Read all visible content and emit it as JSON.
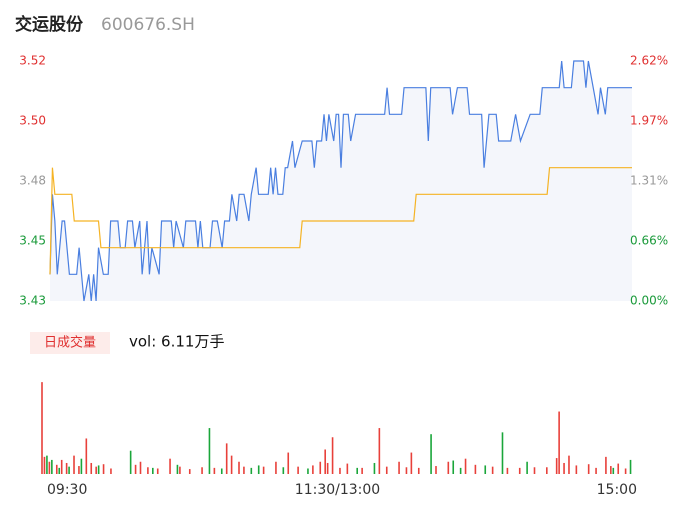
{
  "chart_data": [
    {
      "type": "line",
      "title": "交运股份",
      "subtitle": "600676.SH",
      "xlim": [
        0,
        240
      ],
      "ylim": [
        3.43,
        3.52
      ],
      "yticks": [
        {
          "value": 3.43,
          "label": "3.43"
        },
        {
          "value": 3.4525,
          "label": "3.45"
        },
        {
          "value": 3.475,
          "label": "3.48"
        },
        {
          "value": 3.4975,
          "label": "3.50"
        },
        {
          "value": 3.52,
          "label": "3.52"
        }
      ],
      "y2lim": [
        0,
        2.62
      ],
      "y2ticks": [
        {
          "value": 0,
          "label": "0.00%"
        },
        {
          "value": 0.655,
          "label": "0.66%"
        },
        {
          "value": 1.31,
          "label": "1.31%"
        },
        {
          "value": 1.965,
          "label": "1.97%"
        },
        {
          "value": 2.62,
          "label": "2.62%"
        }
      ],
      "tick_colors": [
        "#1a9a3a",
        "#1a9a3a",
        "#999999",
        "#e03030",
        "#e03030"
      ],
      "area_color": "#f4f6fb",
      "series": [
        {
          "color": "#4a7fe0",
          "x": [
            0,
            1,
            2,
            3,
            5,
            6,
            8,
            11,
            12,
            13,
            14,
            16,
            17,
            18,
            19,
            20,
            22,
            24,
            25,
            28,
            29,
            31,
            32,
            34,
            35,
            37,
            38,
            40,
            41,
            42,
            45,
            46,
            50,
            51,
            52,
            55,
            56,
            60,
            61,
            62,
            63,
            66,
            67,
            69,
            71,
            72,
            74,
            75,
            77,
            78,
            80,
            82,
            83,
            85,
            86,
            90,
            91,
            92,
            93,
            94,
            96,
            97,
            98,
            100,
            101,
            104,
            108,
            109,
            110,
            112,
            113,
            114,
            115,
            117,
            118,
            119,
            120,
            121,
            123,
            124,
            126,
            138,
            139,
            140,
            145,
            146,
            155,
            156,
            157,
            165,
            166,
            168,
            172,
            173,
            178,
            179,
            181,
            184,
            185,
            190,
            192,
            194,
            198,
            202,
            203,
            210,
            211,
            212,
            215,
            216,
            220,
            221,
            222,
            224,
            226,
            227,
            229,
            230,
            240
          ],
          "values": [
            3.44,
            3.47,
            3.46,
            3.44,
            3.46,
            3.46,
            3.44,
            3.44,
            3.45,
            3.44,
            3.43,
            3.44,
            3.43,
            3.44,
            3.43,
            3.45,
            3.44,
            3.44,
            3.46,
            3.46,
            3.45,
            3.45,
            3.46,
            3.46,
            3.45,
            3.46,
            3.44,
            3.46,
            3.44,
            3.45,
            3.44,
            3.46,
            3.46,
            3.45,
            3.46,
            3.45,
            3.46,
            3.46,
            3.45,
            3.46,
            3.45,
            3.45,
            3.46,
            3.46,
            3.45,
            3.46,
            3.46,
            3.47,
            3.46,
            3.47,
            3.47,
            3.46,
            3.47,
            3.48,
            3.47,
            3.47,
            3.48,
            3.47,
            3.48,
            3.47,
            3.47,
            3.48,
            3.48,
            3.49,
            3.48,
            3.49,
            3.49,
            3.48,
            3.49,
            3.49,
            3.5,
            3.49,
            3.5,
            3.49,
            3.5,
            3.5,
            3.48,
            3.5,
            3.5,
            3.49,
            3.5,
            3.5,
            3.51,
            3.5,
            3.5,
            3.51,
            3.51,
            3.49,
            3.51,
            3.51,
            3.5,
            3.51,
            3.51,
            3.5,
            3.5,
            3.48,
            3.5,
            3.5,
            3.49,
            3.49,
            3.5,
            3.49,
            3.5,
            3.5,
            3.51,
            3.51,
            3.52,
            3.51,
            3.51,
            3.52,
            3.52,
            3.51,
            3.52,
            3.51,
            3.5,
            3.51,
            3.5,
            3.51,
            3.51
          ]
        },
        {
          "color": "#f5b324",
          "x": [
            0,
            1,
            2,
            9,
            10,
            20,
            21,
            103,
            104,
            150,
            151,
            205,
            206,
            240
          ],
          "values": [
            3.44,
            3.48,
            3.47,
            3.47,
            3.46,
            3.46,
            3.45,
            3.45,
            3.46,
            3.46,
            3.47,
            3.47,
            3.48,
            3.48
          ]
        }
      ]
    },
    {
      "type": "bar",
      "title": "日成交量",
      "subtitle": "vol: 6.11万手",
      "xlim": [
        0,
        240
      ],
      "ylim": [
        0,
        1600
      ],
      "xticks": [
        {
          "value": 0,
          "label": "09:30"
        },
        {
          "value": 120,
          "label": "11:30/13:00"
        },
        {
          "value": 240,
          "label": "15:00"
        }
      ],
      "series": [
        {
          "color": "#e8403a",
          "x": [
            0,
            1,
            3,
            6,
            8,
            10,
            13,
            15,
            18,
            20,
            22,
            25,
            28,
            38,
            40,
            43,
            47,
            52,
            56,
            60,
            65,
            70,
            75,
            77,
            80,
            82,
            90,
            95,
            100,
            104,
            110,
            113,
            115,
            116,
            118,
            121,
            124,
            130,
            137,
            140,
            145,
            148,
            150,
            153,
            160,
            165,
            172,
            176,
            183,
            189,
            194,
            200,
            205,
            209,
            210,
            212,
            214,
            217,
            222,
            225,
            229,
            231,
            234,
            237
          ],
          "values": [
            1500,
            280,
            200,
            150,
            230,
            180,
            300,
            130,
            580,
            180,
            120,
            160,
            90,
            150,
            200,
            110,
            90,
            250,
            120,
            80,
            110,
            100,
            500,
            300,
            200,
            120,
            120,
            200,
            350,
            120,
            140,
            200,
            400,
            180,
            600,
            100,
            170,
            100,
            750,
            120,
            200,
            110,
            350,
            100,
            130,
            200,
            250,
            150,
            120,
            100,
            100,
            110,
            110,
            260,
            1020,
            180,
            300,
            140,
            160,
            100,
            280,
            130,
            170,
            90
          ]
        },
        {
          "color": "#1aa63a",
          "x": [
            2,
            4,
            7,
            11,
            16,
            23,
            36,
            45,
            55,
            68,
            73,
            85,
            88,
            98,
            108,
            128,
            135,
            158,
            167,
            170,
            180,
            187,
            197,
            232,
            239
          ],
          "values": [
            300,
            230,
            100,
            120,
            250,
            140,
            380,
            100,
            150,
            750,
            90,
            100,
            140,
            110,
            90,
            100,
            180,
            650,
            220,
            100,
            140,
            680,
            200,
            100,
            230
          ]
        }
      ]
    }
  ]
}
